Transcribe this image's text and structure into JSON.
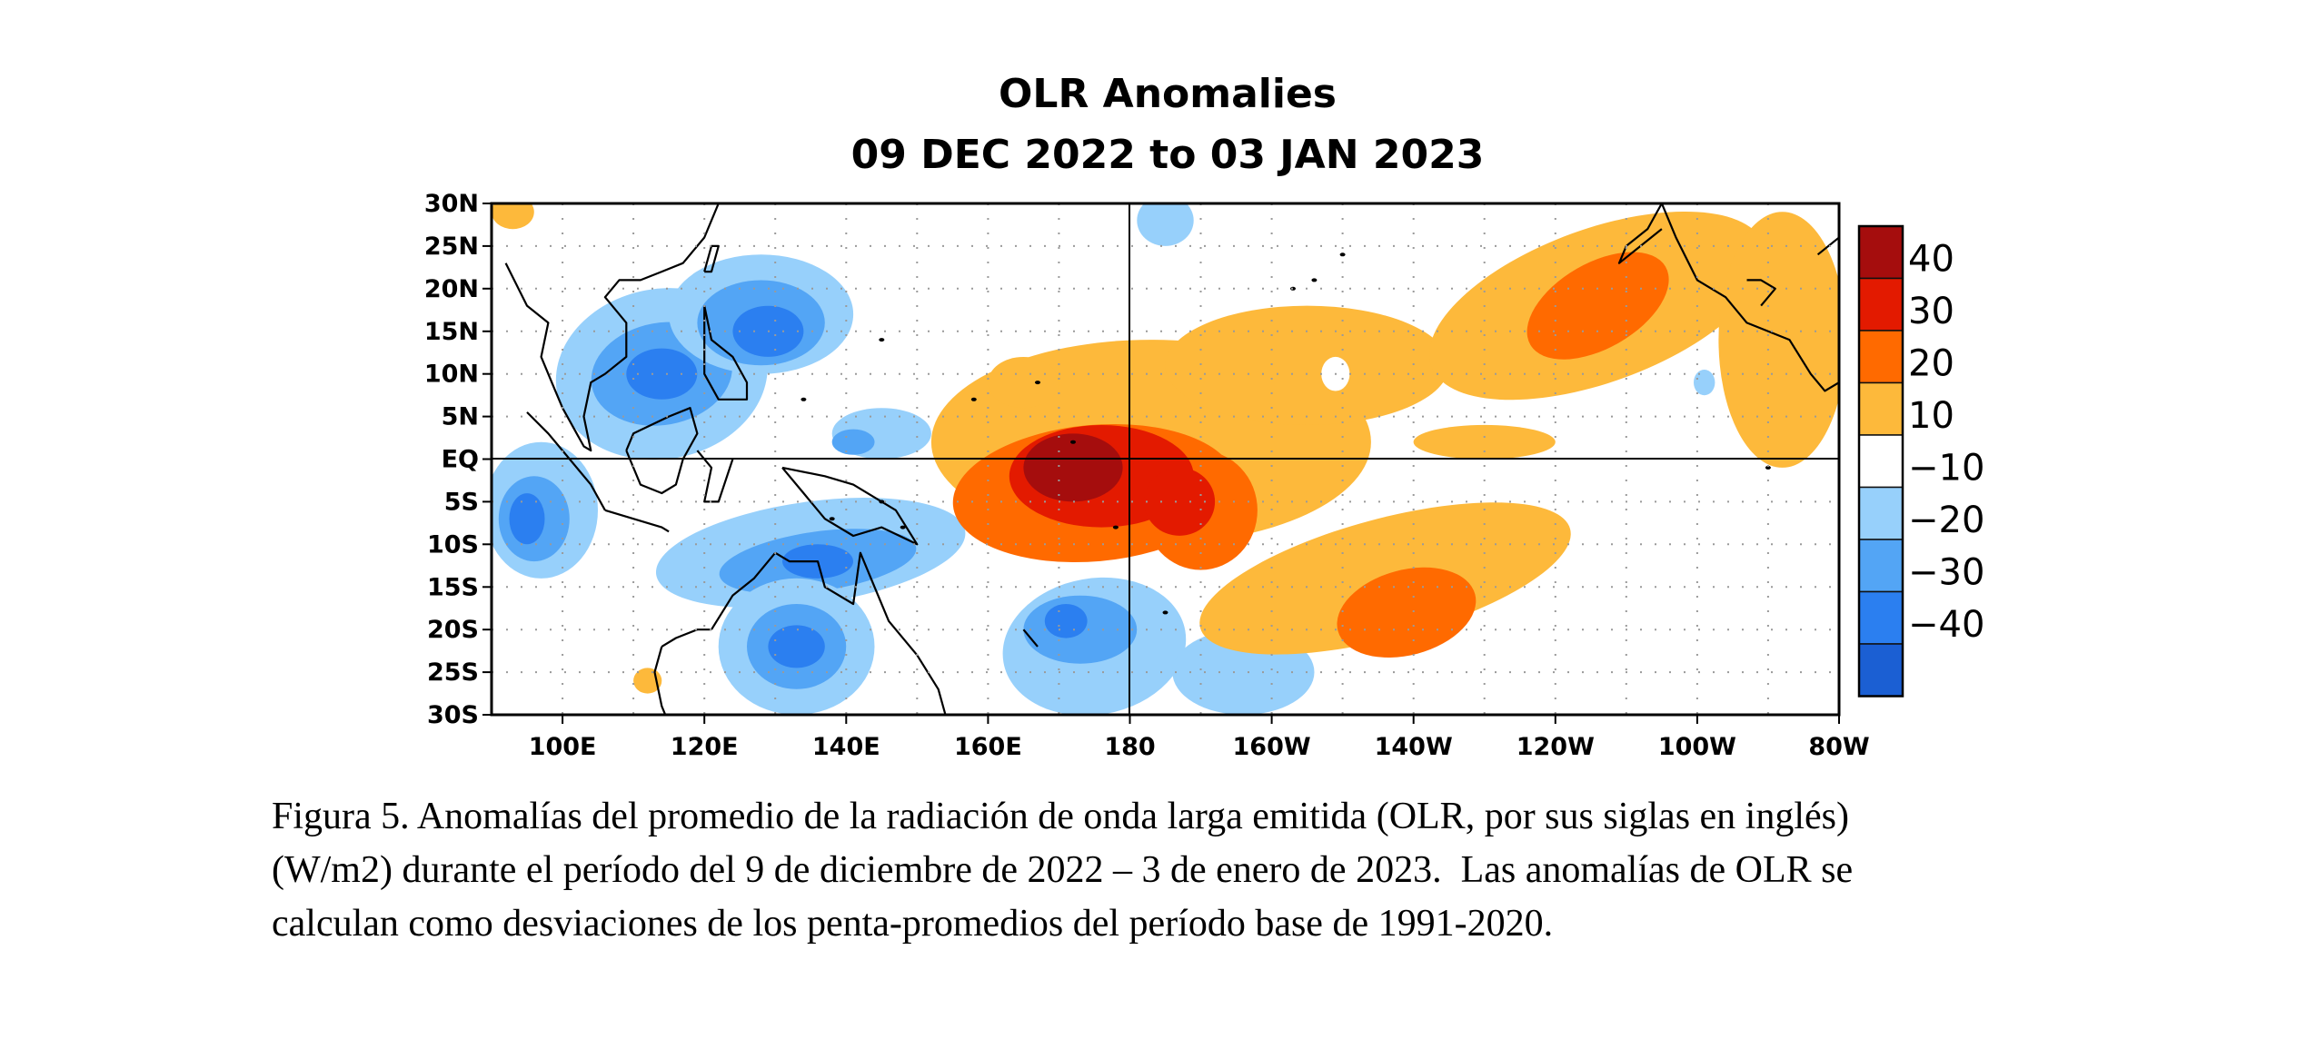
{
  "chart_data": {
    "type": "heatmap",
    "title": "OLR Anomalies",
    "subtitle": "09 DEC 2022 to 03 JAN 2023",
    "x_ticks": [
      "100E",
      "120E",
      "140E",
      "160E",
      "180",
      "160W",
      "140W",
      "120W",
      "100W",
      "80W"
    ],
    "y_ticks": [
      "30N",
      "25N",
      "20N",
      "15N",
      "10N",
      "5N",
      "EQ",
      "5S",
      "10S",
      "15S",
      "20S",
      "25S",
      "30S"
    ],
    "lon_range": [
      90,
      280
    ],
    "lat_range": [
      -30,
      30
    ],
    "grid": true,
    "colorbar": {
      "position": "right",
      "labels": [
        "40",
        "30",
        "20",
        "10",
        "−10",
        "−20",
        "−30",
        "−40"
      ],
      "colors": [
        "#a50d0d",
        "#e31a00",
        "#ff6a00",
        "#fdb93b",
        "#ffffff",
        "#97d0fb",
        "#53a5f5",
        "#2b7ff0",
        "#1b5fd3"
      ]
    },
    "palette": {
      "pos10": "#fdb93b",
      "pos20": "#ff6a00",
      "pos30": "#e31a00",
      "pos40": "#a50d0d",
      "neg10": "#97d0fb",
      "neg20": "#53a5f5",
      "neg30": "#2b7ff0"
    }
  },
  "caption": {
    "line1": "Figura 5. Anomalías del promedio de la radiación de onda larga emitida (OLR, por sus siglas en inglés)",
    "line2": "(W/m2) durante el período del 9 de diciembre de 2022 – 3 de enero de 2023.  Las anomalías de OLR se",
    "line3": "calculan como desviaciones de los penta-promedios del período base de 1991-2020."
  }
}
